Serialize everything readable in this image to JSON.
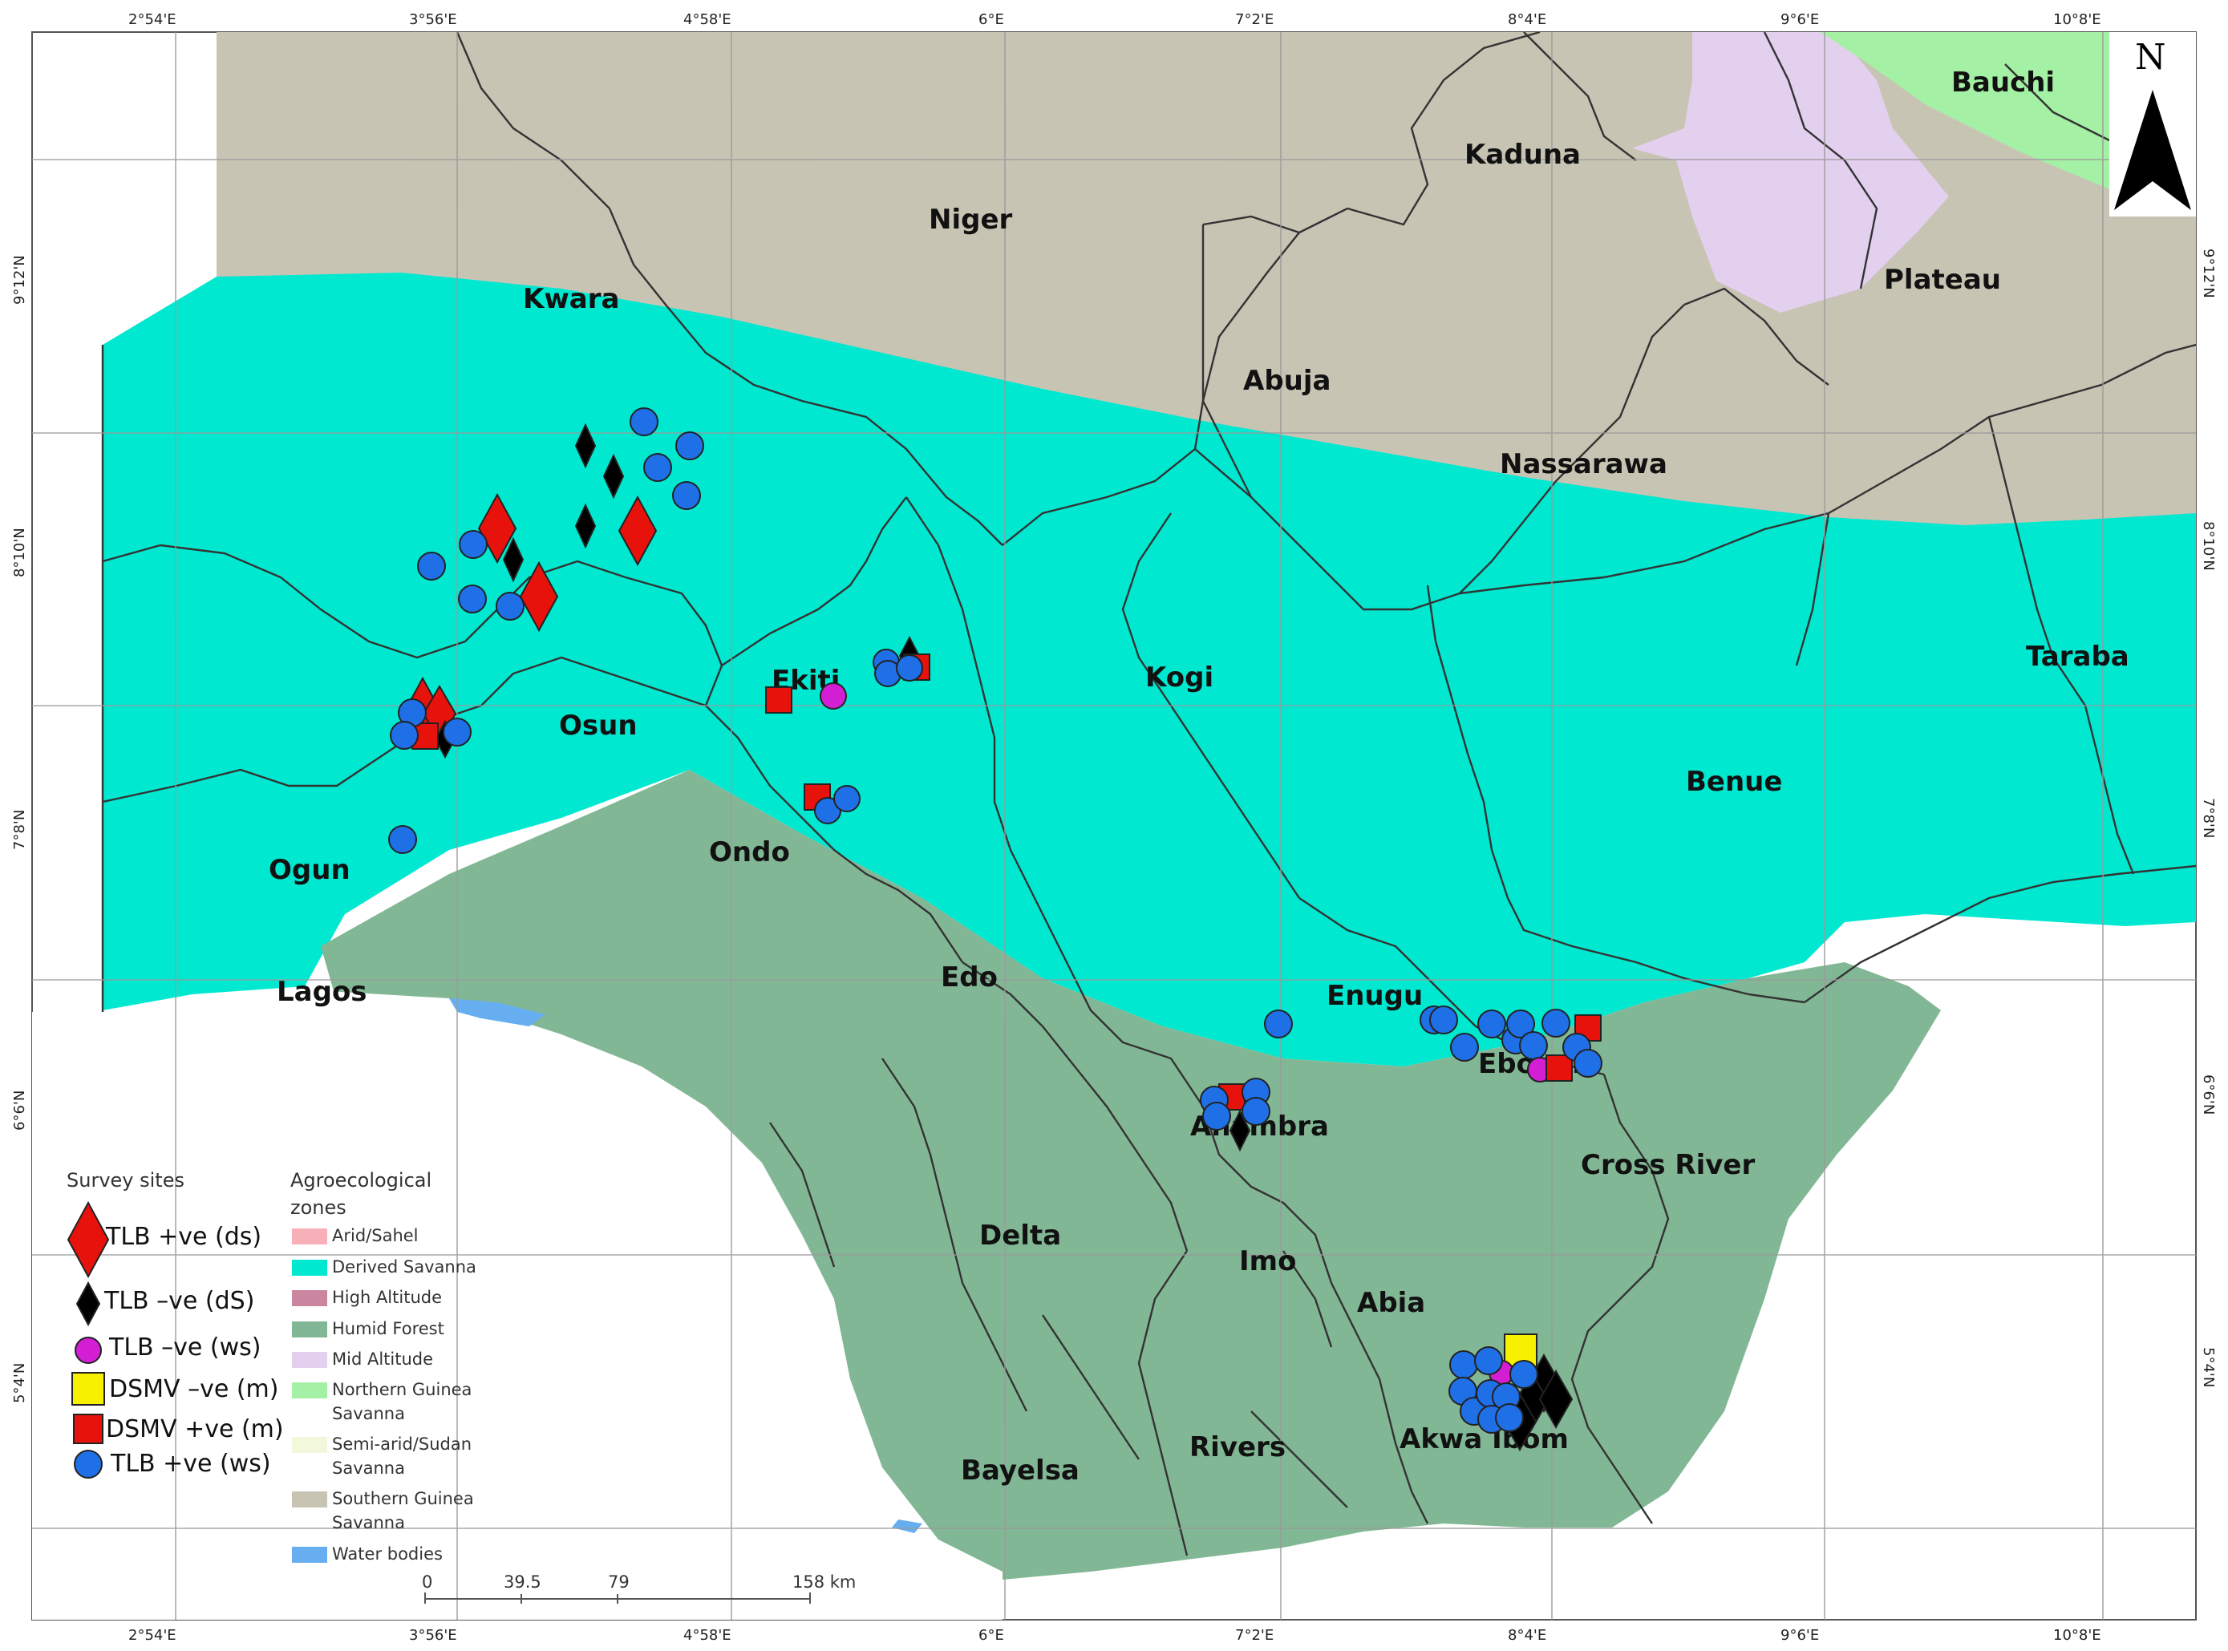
{
  "map": {
    "colors": {
      "derived_savanna": "#00e8d0",
      "southern_guinea_savanna": "#c8c4b4",
      "humid_forest": "#82b795",
      "mid_altitude": "#e3cfee",
      "northern_guinea_savanna": "#a4f0a4",
      "water_bodies": "#66aef0",
      "arid_sahel": "#f7b0b8",
      "high_altitude": "#c9869e",
      "semi_arid_sudan_savanna": "#f2f8dc",
      "sea": "#ffffff",
      "border": "#333333"
    },
    "top_coords": [
      "2°54'E",
      "3°56'E",
      "4°58'E",
      "6°E",
      "7°2'E",
      "8°4'E",
      "9°6'E",
      "10°8'E"
    ],
    "bottom_coords": [
      "2°54'E",
      "3°56'E",
      "4°58'E",
      "6°E",
      "7°2'E",
      "8°4'E",
      "9°6'E",
      "10°8'E"
    ],
    "left_coords": [
      "9°12'N",
      "8°10'N",
      "7°8'N",
      "6°6'N",
      "5°4'N"
    ],
    "right_coords": [
      "9°12'N",
      "8°10'N",
      "7°8'N",
      "6°6'N",
      "5°4'N"
    ],
    "states": {
      "bauchi": "Bauchi",
      "kaduna": "Kaduna",
      "niger": "Niger",
      "plateau": "Plateau",
      "kwara": "Kwara",
      "abuja": "Abuja",
      "nassarawa": "Nassarawa",
      "ekiti": "Ekiti",
      "kogi": "Kogi",
      "taraba": "Taraba",
      "osun": "Osun",
      "benue": "Benue",
      "ogun": "Ogun",
      "ondo": "Ondo",
      "lagos": "Lagos",
      "edo": "Edo",
      "enugu": "Enugu",
      "ebonyi": "Ebonyi",
      "anambra": "Anambra",
      "cross_river": "Cross River",
      "delta": "Delta",
      "imo": "Imo",
      "abia": "Abia",
      "akwa_ibom": "Akwa Ibom",
      "rivers": "Rivers",
      "bayelsa": "Bayelsa"
    },
    "north_arrow": "N"
  },
  "legend": {
    "survey_title": "Survey sites",
    "survey_items": [
      {
        "label": "TLB +ve (ds)",
        "symbol": "red-diamond"
      },
      {
        "label": "TLB –ve (dS)",
        "symbol": "black-diamond"
      },
      {
        "label": "TLB –ve (ws)",
        "symbol": "magenta-circle"
      },
      {
        "label": "DSMV –ve (m)",
        "symbol": "yellow-square"
      },
      {
        "label": "DSMV +ve (m)",
        "symbol": "red-square"
      },
      {
        "label": "TLB +ve (ws)",
        "symbol": "blue-circle"
      }
    ],
    "zones_title_1": "Agroecological",
    "zones_title_2": "zones",
    "zone_items": [
      {
        "line1": "Arid/Sahel",
        "line2": ""
      },
      {
        "line1": "Derived Savanna",
        "line2": ""
      },
      {
        "line1": "High Altitude",
        "line2": ""
      },
      {
        "line1": "Humid Forest",
        "line2": ""
      },
      {
        "line1": "Mid Altitude",
        "line2": ""
      },
      {
        "line1": "Northern Guinea",
        "line2": "Savanna"
      },
      {
        "line1": "Semi-arid/Sudan",
        "line2": "Savanna"
      },
      {
        "line1": "Southern Guinea",
        "line2": "Savanna"
      },
      {
        "line1": "Water bodies",
        "line2": ""
      }
    ]
  },
  "scale_bar": {
    "labels": [
      "0",
      "39.5",
      "79",
      "158 km"
    ]
  }
}
